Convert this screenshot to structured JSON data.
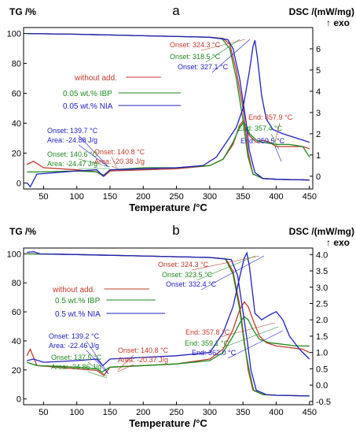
{
  "chart_data": [
    {
      "type": "line",
      "panel_label": "a",
      "ylabel_left": "TG /%",
      "ylabel_right": "DSC /(mW/mg)",
      "ylabel_right_sub": "↑ exo",
      "xlabel": "Temperature /°C",
      "xlim": [
        20,
        455
      ],
      "ylim_left": [
        -4,
        104
      ],
      "ylim_right": [
        -0.6,
        7.0
      ],
      "x_ticks": [
        50,
        100,
        150,
        200,
        250,
        300,
        350,
        400,
        450
      ],
      "y_ticks_left": [
        0,
        20,
        40,
        60,
        80,
        100
      ],
      "y_ticks_right": [
        0,
        1,
        2,
        3,
        4,
        5,
        6
      ],
      "legend": [
        {
          "text": "without add.",
          "color": "#c0392b"
        },
        {
          "text": "0.05 wt.% IBP",
          "color": "#1e8a1e"
        },
        {
          "text": "0.05 wt.% NIA",
          "color": "#2020c0"
        }
      ],
      "series": [
        {
          "name": "without add.",
          "color": "#c0392b",
          "tg": [
            [
              25,
              100
            ],
            [
              100,
              99.5
            ],
            [
              200,
              98.5
            ],
            [
              300,
              97.5
            ],
            [
              320,
              96.8
            ],
            [
              330,
              93
            ],
            [
              340,
              75
            ],
            [
              350,
              50
            ],
            [
              357.9,
              20
            ],
            [
              365,
              6
            ],
            [
              380,
              3
            ],
            [
              400,
              2.5
            ],
            [
              450,
              2
            ]
          ],
          "dsc": [
            [
              25,
              0.55
            ],
            [
              35,
              0.7
            ],
            [
              50,
              0.4
            ],
            [
              100,
              0.3
            ],
            [
              130,
              0.2
            ],
            [
              140.8,
              0.0
            ],
            [
              150,
              0.25
            ],
            [
              200,
              0.3
            ],
            [
              250,
              0.35
            ],
            [
              300,
              0.5
            ],
            [
              320,
              0.8
            ],
            [
              335,
              1.5
            ],
            [
              345,
              2.4
            ],
            [
              350,
              2.6
            ],
            [
              355,
              2.2
            ],
            [
              360,
              1.9
            ],
            [
              370,
              1.6
            ],
            [
              380,
              1.7
            ],
            [
              390,
              1.6
            ],
            [
              400,
              1.4
            ],
            [
              420,
              1.4
            ],
            [
              440,
              1.4
            ],
            [
              450,
              1.3
            ]
          ]
        },
        {
          "name": "0.05 wt.% IBP",
          "color": "#1e8a1e",
          "tg": [
            [
              25,
              100
            ],
            [
              100,
              99.5
            ],
            [
              200,
              98.5
            ],
            [
              300,
              97.5
            ],
            [
              318.5,
              96.5
            ],
            [
              330,
              90
            ],
            [
              340,
              70
            ],
            [
              350,
              42
            ],
            [
              357.4,
              18
            ],
            [
              365,
              6
            ],
            [
              380,
              3
            ],
            [
              400,
              2.5
            ],
            [
              450,
              2
            ]
          ],
          "dsc": [
            [
              25,
              0.2
            ],
            [
              40,
              0.2
            ],
            [
              100,
              0.25
            ],
            [
              130,
              0.2
            ],
            [
              140.6,
              0.05
            ],
            [
              150,
              0.3
            ],
            [
              200,
              0.4
            ],
            [
              250,
              0.4
            ],
            [
              300,
              0.5
            ],
            [
              320,
              0.8
            ],
            [
              335,
              1.6
            ],
            [
              345,
              2.3
            ],
            [
              350,
              2.5
            ],
            [
              355,
              2.4
            ],
            [
              360,
              2.0
            ],
            [
              370,
              1.7
            ],
            [
              380,
              1.6
            ],
            [
              400,
              1.5
            ],
            [
              420,
              1.5
            ],
            [
              440,
              1.4
            ],
            [
              450,
              0.9
            ]
          ]
        },
        {
          "name": "0.05 wt.% NIA",
          "color": "#2020c0",
          "tg": [
            [
              25,
              100
            ],
            [
              100,
              99.5
            ],
            [
              200,
              98.5
            ],
            [
              300,
              97.5
            ],
            [
              327.1,
              96
            ],
            [
              335,
              90
            ],
            [
              345,
              70
            ],
            [
              355,
              40
            ],
            [
              359.5,
              22
            ],
            [
              368,
              7
            ],
            [
              380,
              3
            ],
            [
              400,
              2.5
            ],
            [
              450,
              2
            ]
          ],
          "dsc": [
            [
              25,
              -0.3
            ],
            [
              30,
              -0.5
            ],
            [
              40,
              0.1
            ],
            [
              100,
              0.25
            ],
            [
              130,
              0.3
            ],
            [
              139.7,
              0.0
            ],
            [
              150,
              0.3
            ],
            [
              200,
              0.35
            ],
            [
              250,
              0.4
            ],
            [
              290,
              0.5
            ],
            [
              310,
              0.9
            ],
            [
              325,
              1.6
            ],
            [
              340,
              2.3
            ],
            [
              350,
              3.2
            ],
            [
              360,
              5.0
            ],
            [
              365,
              6.1
            ],
            [
              368,
              6.4
            ],
            [
              372,
              5.5
            ],
            [
              378,
              3.8
            ],
            [
              385,
              2.7
            ],
            [
              395,
              2.2
            ],
            [
              410,
              2.0
            ],
            [
              430,
              1.8
            ],
            [
              450,
              1.6
            ]
          ]
        }
      ],
      "annotations": [
        {
          "text": "Onset: 324.3 °C",
          "color": "#c0392b"
        },
        {
          "text": "Onset: 318.5 °C",
          "color": "#1e8a1e"
        },
        {
          "text": "Onset: 327.1 °C",
          "color": "#2020c0"
        },
        {
          "text": "End: 357.9 °C",
          "color": "#c0392b"
        },
        {
          "text": "End: 357.4 °C",
          "color": "#1e8a1e"
        },
        {
          "text": "End: 359.5 °C",
          "color": "#2020c0"
        },
        {
          "text": "Onset: 139.7 °C",
          "color": "#2020c0"
        },
        {
          "text": "Area: -24.88 J/g",
          "color": "#2020c0"
        },
        {
          "text": "Onset: 140.6 °C",
          "color": "#1e8a1e"
        },
        {
          "text": "Area: -24.47 J/g",
          "color": "#1e8a1e"
        },
        {
          "text": "Onset: 140.8 °C",
          "color": "#c0392b"
        },
        {
          "text": "Area: -20.38 J/g",
          "color": "#c0392b"
        }
      ]
    },
    {
      "type": "line",
      "panel_label": "b",
      "ylabel_left": "TG /%",
      "ylabel_right": "DSC /(mW/mg)",
      "ylabel_right_sub": "↑ exo",
      "xlabel": "Temperature /°C",
      "xlim": [
        20,
        455
      ],
      "ylim_left": [
        -4,
        104
      ],
      "ylim_right": [
        -0.6,
        4.2
      ],
      "x_ticks": [
        50,
        100,
        150,
        200,
        250,
        300,
        350,
        400,
        450
      ],
      "y_ticks_left": [
        0,
        20,
        40,
        60,
        80,
        100
      ],
      "y_ticks_right": [
        -0.5,
        0.0,
        0.5,
        1.0,
        1.5,
        2.0,
        2.5,
        3.0,
        3.5,
        4.0
      ],
      "legend": [
        {
          "text": "without add.",
          "color": "#c0392b"
        },
        {
          "text": "0.5 wt.% IBP",
          "color": "#1e8a1e"
        },
        {
          "text": "0.5 wt.% NIA",
          "color": "#2020c0"
        }
      ],
      "series": [
        {
          "name": "without add.",
          "color": "#c0392b",
          "tg": [
            [
              25,
              100
            ],
            [
              100,
              99.5
            ],
            [
              200,
              98.5
            ],
            [
              300,
              97.5
            ],
            [
              324.3,
              96.5
            ],
            [
              335,
              88
            ],
            [
              345,
              65
            ],
            [
              352,
              40
            ],
            [
              357.8,
              20
            ],
            [
              365,
              6
            ],
            [
              380,
              3
            ],
            [
              400,
              2.5
            ],
            [
              450,
              2
            ]
          ],
          "dsc": [
            [
              25,
              0.9
            ],
            [
              30,
              1.1
            ],
            [
              40,
              0.6
            ],
            [
              100,
              0.5
            ],
            [
              130,
              0.45
            ],
            [
              140.8,
              0.3
            ],
            [
              150,
              0.55
            ],
            [
              200,
              0.6
            ],
            [
              250,
              0.65
            ],
            [
              300,
              0.8
            ],
            [
              320,
              1.1
            ],
            [
              335,
              1.7
            ],
            [
              345,
              2.3
            ],
            [
              352,
              2.55
            ],
            [
              358,
              2.4
            ],
            [
              365,
              2.0
            ],
            [
              375,
              1.5
            ],
            [
              385,
              1.3
            ],
            [
              400,
              1.2
            ],
            [
              420,
              1.15
            ],
            [
              440,
              1.1
            ],
            [
              450,
              1.0
            ]
          ]
        },
        {
          "name": "0.5 wt.% IBP",
          "color": "#1e8a1e",
          "tg": [
            [
              25,
              100
            ],
            [
              100,
              99.5
            ],
            [
              200,
              98.5
            ],
            [
              300,
              97.5
            ],
            [
              323.5,
              96.5
            ],
            [
              335,
              86
            ],
            [
              345,
              62
            ],
            [
              352,
              38
            ],
            [
              359.1,
              20
            ],
            [
              366,
              6
            ],
            [
              380,
              3
            ],
            [
              400,
              2.5
            ],
            [
              450,
              2
            ]
          ],
          "dsc": [
            [
              25,
              0.7
            ],
            [
              40,
              0.6
            ],
            [
              100,
              0.55
            ],
            [
              130,
              0.5
            ],
            [
              137.5,
              0.4
            ],
            [
              150,
              0.55
            ],
            [
              200,
              0.6
            ],
            [
              250,
              0.65
            ],
            [
              300,
              0.75
            ],
            [
              320,
              1.0
            ],
            [
              335,
              1.5
            ],
            [
              345,
              1.9
            ],
            [
              352,
              2.1
            ],
            [
              358,
              2.0
            ],
            [
              365,
              1.7
            ],
            [
              375,
              1.4
            ],
            [
              390,
              1.3
            ],
            [
              410,
              1.25
            ],
            [
              430,
              1.2
            ],
            [
              450,
              1.2
            ]
          ]
        },
        {
          "name": "0.5 wt.% NIA",
          "color": "#2020c0",
          "tg": [
            [
              25,
              101
            ],
            [
              35,
              101.5
            ],
            [
              45,
              100
            ],
            [
              100,
              99.5
            ],
            [
              200,
              98.5
            ],
            [
              300,
              97.5
            ],
            [
              332.4,
              96
            ],
            [
              342,
              85
            ],
            [
              350,
              60
            ],
            [
              357,
              38
            ],
            [
              362,
              20
            ],
            [
              370,
              6
            ],
            [
              385,
              3
            ],
            [
              400,
              2.5
            ],
            [
              450,
              2
            ]
          ],
          "dsc": [
            [
              25,
              0.75
            ],
            [
              35,
              0.8
            ],
            [
              50,
              0.7
            ],
            [
              100,
              0.75
            ],
            [
              130,
              0.8
            ],
            [
              139.2,
              0.6
            ],
            [
              150,
              0.8
            ],
            [
              200,
              0.85
            ],
            [
              250,
              0.9
            ],
            [
              300,
              1.0
            ],
            [
              320,
              1.6
            ],
            [
              335,
              2.4
            ],
            [
              345,
              3.3
            ],
            [
              352,
              3.9
            ],
            [
              356,
              4.05
            ],
            [
              360,
              3.6
            ],
            [
              368,
              2.2
            ],
            [
              378,
              2.0
            ],
            [
              390,
              2.15
            ],
            [
              400,
              2.25
            ],
            [
              410,
              2.0
            ],
            [
              420,
              1.5
            ],
            [
              435,
              1.1
            ],
            [
              450,
              0.8
            ]
          ]
        }
      ],
      "annotations": [
        {
          "text": "Onset: 324.3 °C",
          "color": "#c0392b"
        },
        {
          "text": "Onset: 323.5 °C",
          "color": "#1e8a1e"
        },
        {
          "text": "Onset: 332.4 °C",
          "color": "#2020c0"
        },
        {
          "text": "End: 357.8 °C",
          "color": "#c0392b"
        },
        {
          "text": "End: 359.1 °C",
          "color": "#1e8a1e"
        },
        {
          "text": "End: 362.0 °C",
          "color": "#2020c0"
        },
        {
          "text": "Onset: 139.2 °C",
          "color": "#2020c0"
        },
        {
          "text": "Area: -22.46 J/g",
          "color": "#2020c0"
        },
        {
          "text": "Onset: 137.5 °C",
          "color": "#1e8a1e"
        },
        {
          "text": "Area: -24.86 J/g",
          "color": "#1e8a1e"
        },
        {
          "text": "Onset: 140.8 °C",
          "color": "#c0392b"
        },
        {
          "text": "Area: -20.37 J/g",
          "color": "#c0392b"
        }
      ]
    }
  ]
}
